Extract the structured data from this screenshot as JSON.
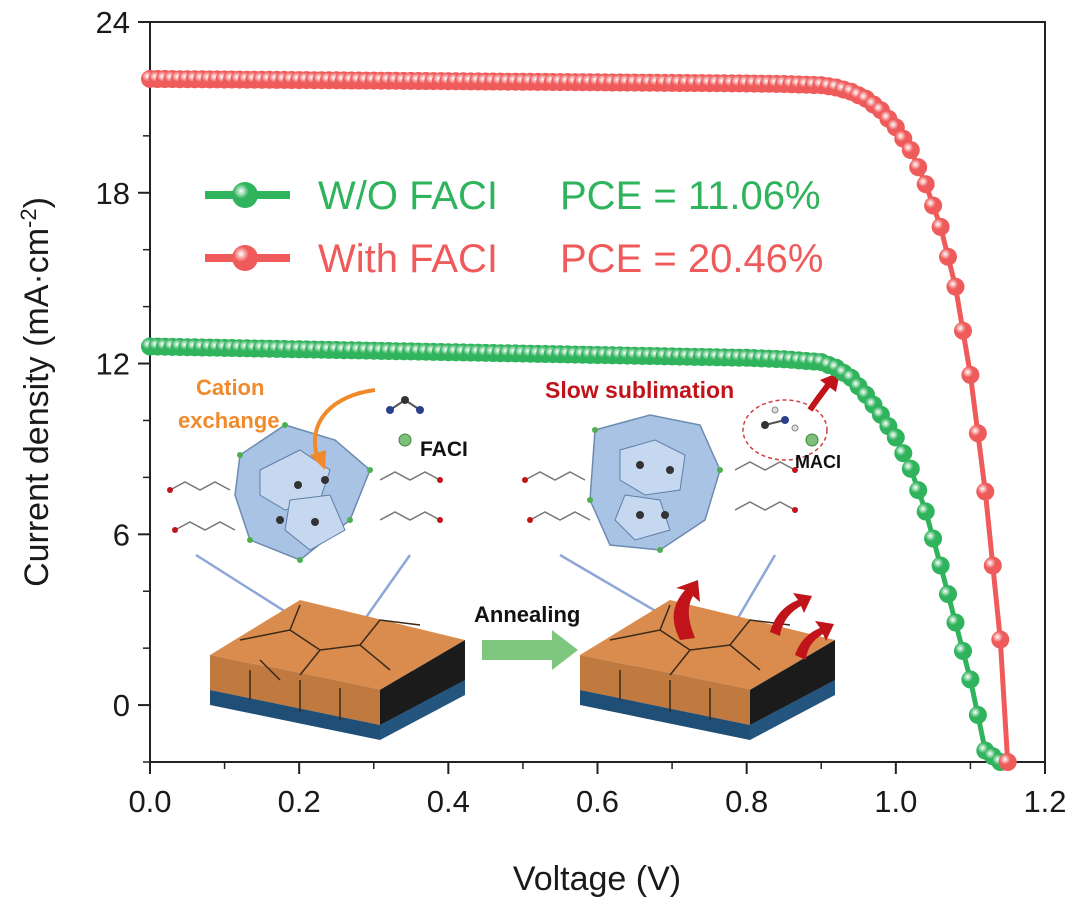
{
  "chart_data": {
    "type": "line",
    "xlabel": "Voltage (V)",
    "ylabel": "Current density (mA·cm",
    "ylabel_sup": "-2",
    "ylabel_close": ")",
    "xlim": [
      0.0,
      1.2
    ],
    "ylim": [
      -2,
      24
    ],
    "x_ticks": [
      "0.0",
      "0.2",
      "0.4",
      "0.6",
      "0.8",
      "1.0",
      "1.2"
    ],
    "y_ticks": [
      "0",
      "6",
      "12",
      "18",
      "24"
    ],
    "grid": false,
    "legend_position": "top-left",
    "series": [
      {
        "name": "W/O FACI",
        "annotation": "PCE = 11.06%",
        "color": "#2fb35c",
        "x": [
          0.0,
          0.1,
          0.2,
          0.3,
          0.4,
          0.5,
          0.6,
          0.7,
          0.8,
          0.85,
          0.9,
          0.92,
          0.94,
          0.96,
          0.98,
          1.0,
          1.02,
          1.04,
          1.06,
          1.08,
          1.1,
          1.12,
          1.14
        ],
        "y": [
          12.6,
          12.55,
          12.5,
          12.45,
          12.4,
          12.35,
          12.3,
          12.25,
          12.2,
          12.15,
          12.05,
          11.85,
          11.5,
          10.9,
          10.2,
          9.4,
          8.3,
          6.8,
          4.9,
          2.9,
          0.9,
          -1.6,
          -2.0
        ]
      },
      {
        "name": "With FACI",
        "annotation": "PCE = 20.46%",
        "color": "#ef5a5a",
        "x": [
          0.0,
          0.1,
          0.2,
          0.3,
          0.4,
          0.5,
          0.6,
          0.7,
          0.8,
          0.85,
          0.9,
          0.92,
          0.94,
          0.96,
          0.98,
          1.0,
          1.02,
          1.04,
          1.06,
          1.08,
          1.1,
          1.12,
          1.14,
          1.15
        ],
        "y": [
          22.0,
          21.98,
          21.96,
          21.94,
          21.92,
          21.9,
          21.88,
          21.86,
          21.84,
          21.82,
          21.78,
          21.7,
          21.55,
          21.3,
          20.9,
          20.3,
          19.5,
          18.3,
          16.8,
          14.7,
          11.6,
          7.5,
          2.3,
          -2.0
        ]
      }
    ]
  },
  "inset": {
    "cation_exchange_line1": "Cation",
    "cation_exchange_line2": "exchange",
    "faci_label": "FACI",
    "slow_sublimation": "Slow sublimation",
    "maci_label": "MACI",
    "annealing": "Annealing",
    "colors": {
      "cation_orange": "#f08a2a",
      "sublimation_red": "#c0141a",
      "perovskite_blue": "#9fbde0",
      "film_orange": "#d98c4e",
      "substrate_blue": "#2f6e9e",
      "arrow_green": "#7fc77f"
    }
  }
}
